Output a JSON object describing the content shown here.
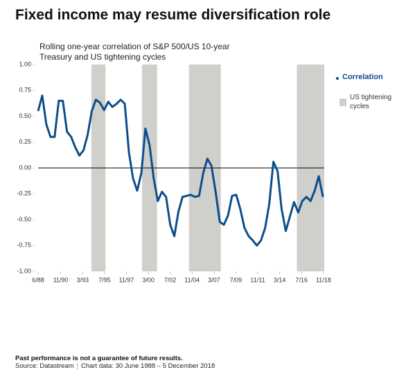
{
  "chart_data": {
    "type": "line",
    "title": "Fixed income may resume diversification role",
    "subtitle": "Rolling one-year correlation of S&P 500/US 10-year Treasury and US tightening cycles",
    "x": [
      1988.42,
      1988.86,
      1989.3,
      1989.74,
      1990.18,
      1990.62,
      1991.06,
      1991.5,
      1991.94,
      1992.38,
      1992.82,
      1993.26,
      1993.7,
      1994.14,
      1994.58,
      1995.02,
      1995.46,
      1995.9,
      1996.34,
      1996.78,
      1997.22,
      1997.66,
      1998.1,
      1998.54,
      1998.98,
      1999.42,
      1999.86,
      2000.3,
      2000.74,
      2001.18,
      2001.62,
      2002.06,
      2002.5,
      2002.94,
      2003.38,
      2003.82,
      2004.26,
      2004.7,
      2005.14,
      2005.58,
      2006.02,
      2006.46,
      2006.9,
      2007.34,
      2007.78,
      2008.22,
      2008.66,
      2009.1,
      2009.54,
      2009.98,
      2010.42,
      2010.86,
      2011.3,
      2011.74,
      2012.18,
      2012.62,
      2013.06,
      2013.5,
      2013.94,
      2014.38,
      2014.82,
      2015.26,
      2015.7,
      2016.14,
      2016.58,
      2017.02,
      2017.46,
      2017.9,
      2018.34,
      2018.78
    ],
    "series": [
      {
        "name": "Correlation",
        "color": "#0d4d8c",
        "values": [
          0.55,
          0.7,
          0.42,
          0.3,
          0.3,
          0.65,
          0.65,
          0.35,
          0.3,
          0.2,
          0.12,
          0.17,
          0.32,
          0.55,
          0.66,
          0.63,
          0.56,
          0.64,
          0.59,
          0.62,
          0.66,
          0.62,
          0.15,
          -0.1,
          -0.22,
          -0.05,
          0.38,
          0.22,
          -0.1,
          -0.32,
          -0.23,
          -0.28,
          -0.55,
          -0.66,
          -0.42,
          -0.28,
          -0.27,
          -0.26,
          -0.28,
          -0.27,
          -0.05,
          0.09,
          0.02,
          -0.23,
          -0.52,
          -0.55,
          -0.46,
          -0.27,
          -0.26,
          -0.4,
          -0.58,
          -0.66,
          -0.7,
          -0.75,
          -0.7,
          -0.58,
          -0.35,
          0.06,
          -0.03,
          -0.4,
          -0.61,
          -0.47,
          -0.33,
          -0.43,
          -0.32,
          -0.28,
          -0.32,
          -0.22,
          -0.08,
          -0.28
        ]
      }
    ],
    "shaded": {
      "name": "US tightening cycles",
      "color": "#cfcfcb",
      "ranges": [
        [
          1994.1,
          1995.6
        ],
        [
          1999.5,
          2001.1
        ],
        [
          2004.5,
          2007.9
        ],
        [
          2016.0,
          2018.92
        ]
      ]
    },
    "xlim": [
      1988.42,
      2018.92
    ],
    "xticks": [
      {
        "value": 1988.42,
        "label": "6/88"
      },
      {
        "value": 1990.83,
        "label": "11/90"
      },
      {
        "value": 1993.17,
        "label": "3/93"
      },
      {
        "value": 1995.5,
        "label": "7/95"
      },
      {
        "value": 1997.83,
        "label": "11/97"
      },
      {
        "value": 2000.17,
        "label": "3/00"
      },
      {
        "value": 2002.5,
        "label": "7/02"
      },
      {
        "value": 2004.83,
        "label": "11/04"
      },
      {
        "value": 2007.17,
        "label": "3/07"
      },
      {
        "value": 2009.5,
        "label": "7/09"
      },
      {
        "value": 2011.83,
        "label": "11/11"
      },
      {
        "value": 2014.17,
        "label": "3/14"
      },
      {
        "value": 2016.5,
        "label": "7/16"
      },
      {
        "value": 2018.83,
        "label": "11/18"
      }
    ],
    "ylim": [
      -1,
      1
    ],
    "yticks": [
      {
        "value": 1,
        "label": "1.00"
      },
      {
        "value": 0.75,
        "label": "0.75"
      },
      {
        "value": 0.5,
        "label": "0.50"
      },
      {
        "value": 0.25,
        "label": "0.25"
      },
      {
        "value": 0,
        "label": "0.00"
      },
      {
        "value": -0.25,
        "label": "-0.25"
      },
      {
        "value": -0.5,
        "label": "-0.50"
      },
      {
        "value": -0.75,
        "label": "-0.75"
      },
      {
        "value": -1,
        "label": "-1.00"
      }
    ],
    "disclaimer": "Past performance is not a guarantee of future results.",
    "source": "Source: Datastream",
    "note": "Chart data: 30 June 1988 – 5 December 2018"
  }
}
